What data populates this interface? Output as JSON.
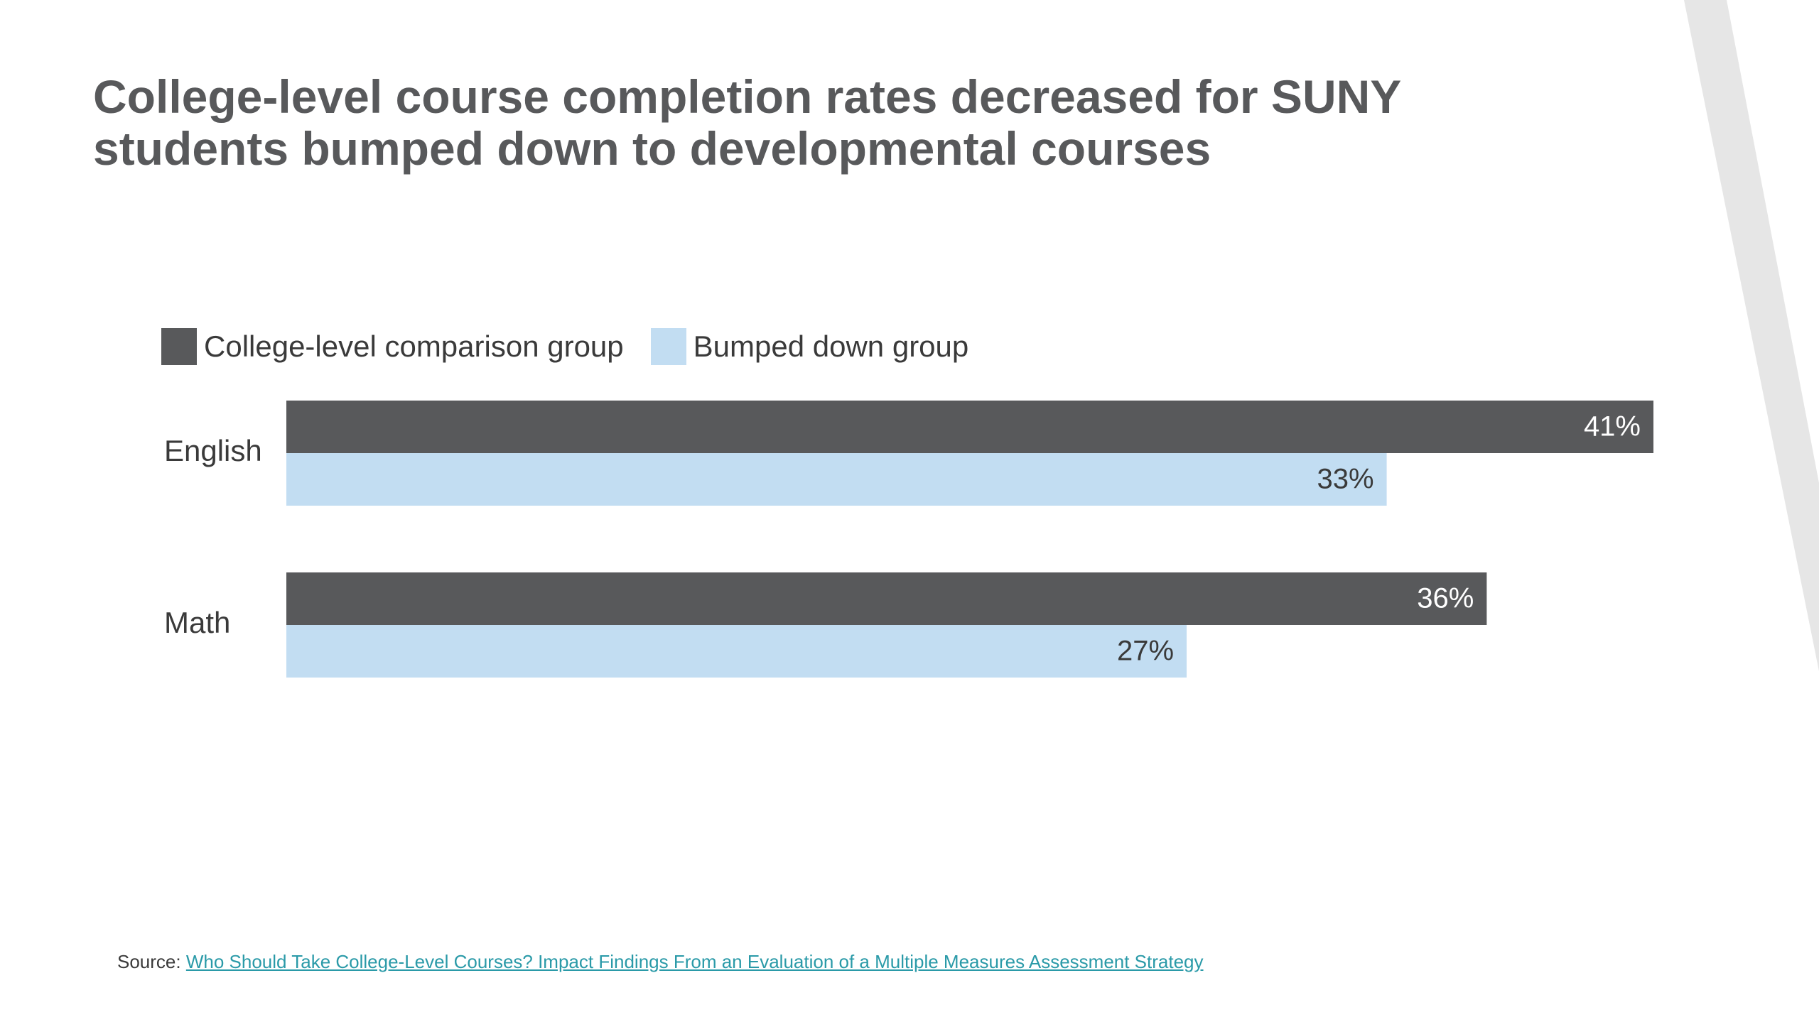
{
  "title_lines": [
    "College-level course completion rates decreased for SUNY",
    "students bumped down to developmental courses"
  ],
  "colors": {
    "comparison": "#58595b",
    "bumped": "#c2ddf2",
    "title": "#58595b",
    "link": "#2a9aa8",
    "decoration": "#e6e6e6"
  },
  "chart_data": {
    "type": "bar",
    "orientation": "horizontal",
    "categories": [
      "English",
      "Math"
    ],
    "series": [
      {
        "name": "College-level comparison group",
        "values": [
          41,
          36
        ],
        "labels": [
          "41%",
          "36%"
        ]
      },
      {
        "name": "Bumped down group",
        "values": [
          33,
          27
        ],
        "labels": [
          "33%",
          "27%"
        ]
      }
    ],
    "xlim": [
      0,
      41
    ],
    "grid": false,
    "legend_position": "top-left"
  },
  "source": {
    "prefix": "Source:",
    "link_text": "Who Should Take College-Level Courses? Impact Findings From an Evaluation of a Multiple Measures Assessment Strategy"
  }
}
